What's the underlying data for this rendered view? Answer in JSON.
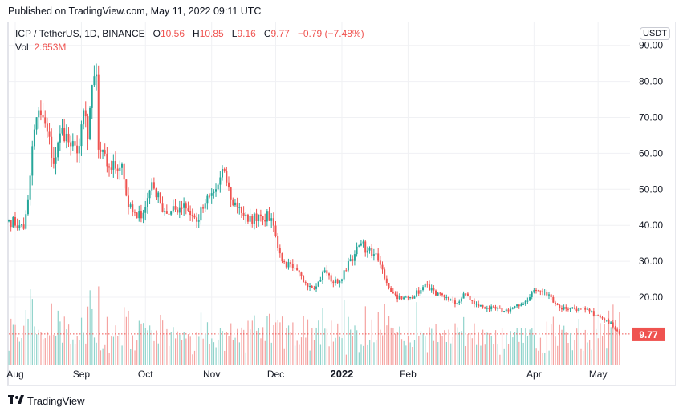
{
  "header": {
    "published": "Published on TradingView.com, May 11, 2022 09:11 UTC"
  },
  "legend": {
    "symbol": "ICP / TetherUS, 1D, BINANCE",
    "o_label": "O",
    "o": "10.56",
    "h_label": "H",
    "h": "10.85",
    "l_label": "L",
    "l": "9.16",
    "c_label": "C",
    "c": "9.77",
    "change": "−0.79 (−7.48%)",
    "vol_label": "Vol",
    "vol": "2.653M"
  },
  "currency": "USDT",
  "footer": {
    "brand": "TradingView",
    "logo": "TV"
  },
  "colors": {
    "up": "#26a69a",
    "down": "#ef5350",
    "grid": "#f0f1f4",
    "text": "#131722"
  },
  "chart_data": {
    "type": "candlestick",
    "title": "ICP / TetherUS, 1D, BINANCE",
    "start_date": "2021-07-29",
    "end_date": "2022-05-11",
    "last_price": 9.77,
    "last_price_label": "9.77",
    "ylim": [
      5,
      95
    ],
    "y_ticks": [
      "90.00",
      "80.00",
      "70.00",
      "60.00",
      "50.00",
      "40.00",
      "30.00",
      "20.00"
    ],
    "y_tick_values": [
      90,
      80,
      70,
      60,
      50,
      40,
      30,
      20
    ],
    "x_ticks": [
      {
        "label": "Aug",
        "date": "2021-08-01"
      },
      {
        "label": "Sep",
        "date": "2021-09-01"
      },
      {
        "label": "Oct",
        "date": "2021-10-01"
      },
      {
        "label": "Nov",
        "date": "2021-11-01"
      },
      {
        "label": "Dec",
        "date": "2021-12-01"
      },
      {
        "label": "2022",
        "date": "2022-01-01",
        "bold": true
      },
      {
        "label": "Feb",
        "date": "2022-02-01"
      },
      {
        "label": "Apr",
        "date": "2022-04-01"
      },
      {
        "label": "May",
        "date": "2022-05-01"
      }
    ],
    "close_anchors": [
      [
        "2021-07-29",
        41.5
      ],
      [
        "2021-08-03",
        40
      ],
      [
        "2021-08-05",
        39
      ],
      [
        "2021-08-07",
        47
      ],
      [
        "2021-08-09",
        62
      ],
      [
        "2021-08-12",
        72
      ],
      [
        "2021-08-16",
        66
      ],
      [
        "2021-08-19",
        57
      ],
      [
        "2021-08-23",
        67
      ],
      [
        "2021-08-27",
        62
      ],
      [
        "2021-08-30",
        60
      ],
      [
        "2021-09-02",
        72
      ],
      [
        "2021-09-04",
        64
      ],
      [
        "2021-09-06",
        79
      ],
      [
        "2021-09-08",
        82
      ],
      [
        "2021-09-09",
        61
      ],
      [
        "2021-09-14",
        56
      ],
      [
        "2021-09-20",
        57
      ],
      [
        "2021-09-23",
        45
      ],
      [
        "2021-09-27",
        42
      ],
      [
        "2021-10-01",
        45
      ],
      [
        "2021-10-04",
        52
      ],
      [
        "2021-10-08",
        46
      ],
      [
        "2021-10-12",
        43
      ],
      [
        "2021-10-19",
        46
      ],
      [
        "2021-10-25",
        41
      ],
      [
        "2021-10-29",
        46
      ],
      [
        "2021-11-03",
        50
      ],
      [
        "2021-11-07",
        55
      ],
      [
        "2021-11-10",
        47
      ],
      [
        "2021-11-14",
        45
      ],
      [
        "2021-11-18",
        41
      ],
      [
        "2021-11-23",
        43
      ],
      [
        "2021-11-29",
        42
      ],
      [
        "2021-12-01",
        37
      ],
      [
        "2021-12-04",
        30
      ],
      [
        "2021-12-09",
        28
      ],
      [
        "2021-12-15",
        24
      ],
      [
        "2021-12-20",
        23
      ],
      [
        "2021-12-24",
        27.5
      ],
      [
        "2021-12-28",
        24
      ],
      [
        "2022-01-01",
        25
      ],
      [
        "2022-01-04",
        30
      ],
      [
        "2022-01-07",
        32
      ],
      [
        "2022-01-10",
        35
      ],
      [
        "2022-01-13",
        33
      ],
      [
        "2022-01-16",
        32
      ],
      [
        "2022-01-19",
        29
      ],
      [
        "2022-01-22",
        24
      ],
      [
        "2022-01-25",
        21
      ],
      [
        "2022-01-29",
        19.5
      ],
      [
        "2022-02-02",
        20
      ],
      [
        "2022-02-07",
        22
      ],
      [
        "2022-02-10",
        23.5
      ],
      [
        "2022-02-14",
        20.5
      ],
      [
        "2022-02-19",
        20
      ],
      [
        "2022-02-23",
        18
      ],
      [
        "2022-02-28",
        21
      ],
      [
        "2022-03-04",
        18
      ],
      [
        "2022-03-10",
        17
      ],
      [
        "2022-03-18",
        16.2
      ],
      [
        "2022-03-25",
        17.5
      ],
      [
        "2022-03-30",
        20
      ],
      [
        "2022-04-01",
        22
      ],
      [
        "2022-04-05",
        21.5
      ],
      [
        "2022-04-09",
        20
      ],
      [
        "2022-04-13",
        17
      ],
      [
        "2022-04-18",
        17
      ],
      [
        "2022-04-25",
        16.5
      ],
      [
        "2022-04-30",
        15
      ],
      [
        "2022-05-04",
        13.5
      ],
      [
        "2022-05-07",
        13
      ],
      [
        "2022-05-09",
        11
      ],
      [
        "2022-05-10",
        10.56
      ],
      [
        "2022-05-11",
        9.77
      ]
    ]
  }
}
